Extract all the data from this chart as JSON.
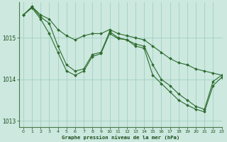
{
  "title": "Graphe pression niveau de la mer (hPa)",
  "background_color": "#cce8df",
  "plot_bg_color": "#cce8df",
  "line_color": "#2d6b2d",
  "grid_color": "#99ccbb",
  "tick_color": "#1a4d1a",
  "ylim": [
    1012.85,
    1015.85
  ],
  "xlim": [
    -0.5,
    23
  ],
  "yticks": [
    1013,
    1014,
    1015
  ],
  "xticks": [
    0,
    1,
    2,
    3,
    4,
    5,
    6,
    7,
    8,
    9,
    10,
    11,
    12,
    13,
    14,
    15,
    16,
    17,
    18,
    19,
    20,
    21,
    22,
    23
  ],
  "series1": [
    1015.55,
    1015.75,
    1015.55,
    1015.45,
    1015.2,
    1015.05,
    1014.95,
    1015.05,
    1015.1,
    1015.1,
    1015.2,
    1015.1,
    1015.05,
    1015.0,
    1014.95,
    1014.8,
    1014.65,
    1014.5,
    1014.4,
    1014.35,
    1014.25,
    1014.2,
    1014.15,
    1014.1
  ],
  "series2": [
    1015.55,
    1015.75,
    1015.5,
    1015.35,
    1014.8,
    1014.35,
    1014.2,
    1014.25,
    1014.6,
    1014.65,
    1015.15,
    1015.0,
    1014.95,
    1014.85,
    1014.8,
    1014.35,
    1014.0,
    1013.85,
    1013.65,
    1013.5,
    1013.35,
    1013.28,
    1013.95,
    1014.1
  ],
  "series3": [
    1015.55,
    1015.72,
    1015.45,
    1015.1,
    1014.65,
    1014.2,
    1014.1,
    1014.2,
    1014.55,
    1014.62,
    1015.1,
    1014.98,
    1014.95,
    1014.8,
    1014.75,
    1014.1,
    1013.9,
    1013.7,
    1013.5,
    1013.38,
    1013.28,
    1013.22,
    1013.85,
    1014.05
  ]
}
